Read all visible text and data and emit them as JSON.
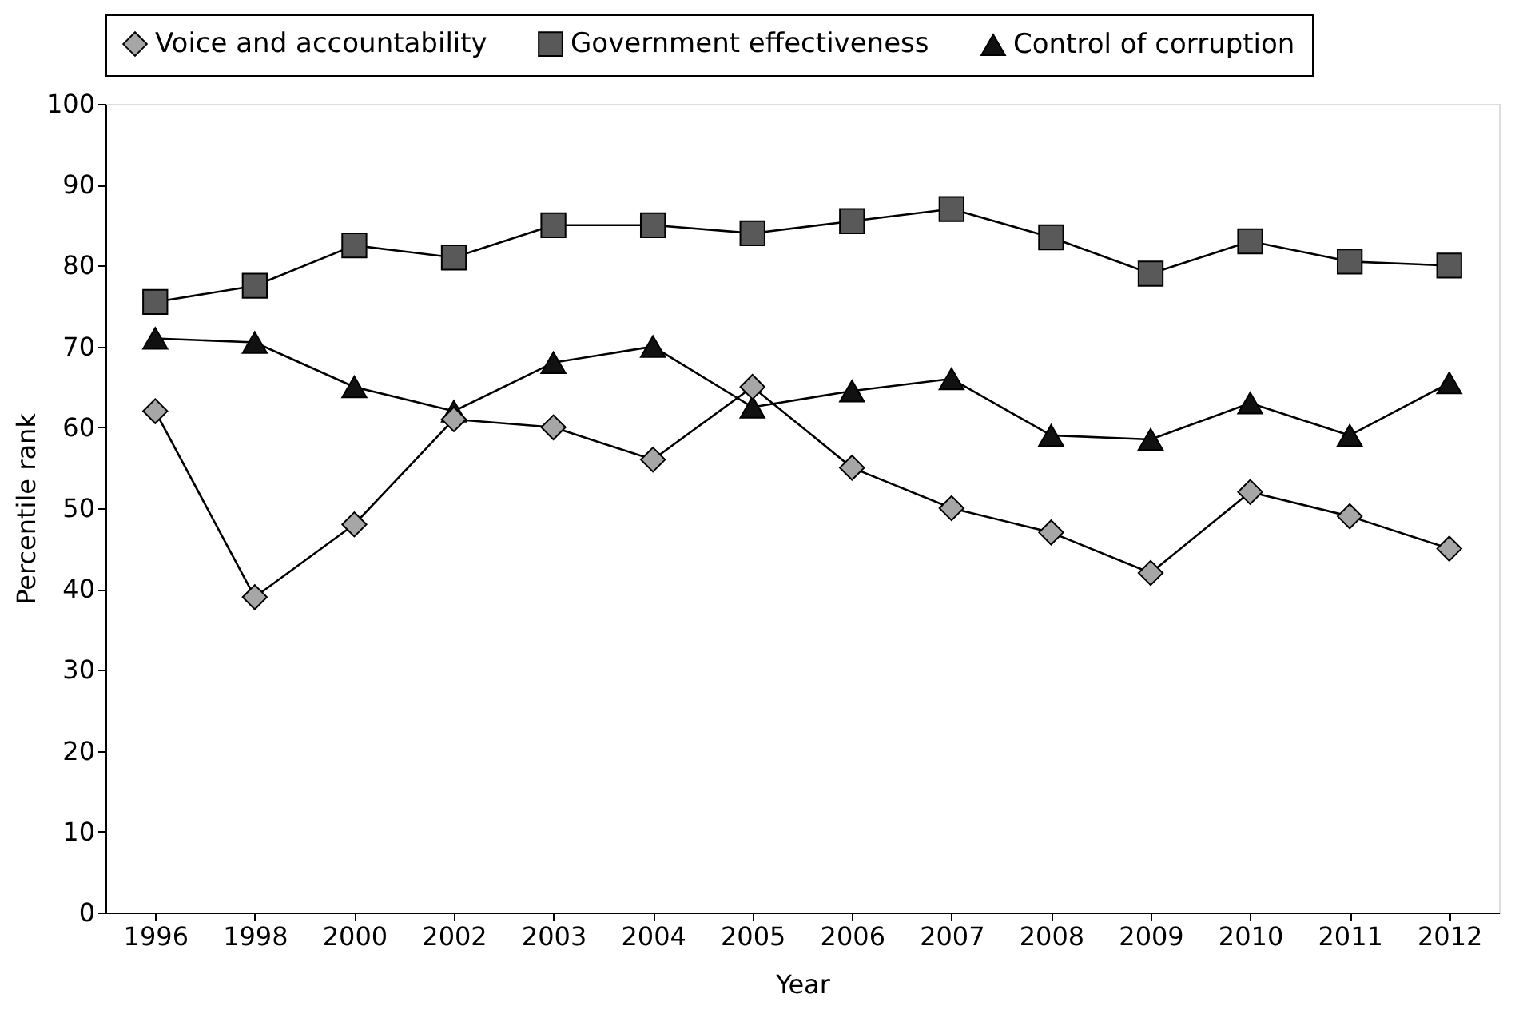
{
  "chart_data": {
    "type": "line",
    "xlabel": "Year",
    "ylabel": "Percentile rank",
    "categories": [
      "1996",
      "1998",
      "2000",
      "2002",
      "2003",
      "2004",
      "2005",
      "2006",
      "2007",
      "2008",
      "2009",
      "2010",
      "2011",
      "2012"
    ],
    "series": [
      {
        "name": "Voice and accountability",
        "color": "#a6a6a6",
        "marker": "diamond",
        "values": [
          62,
          39,
          48,
          61,
          60,
          56,
          65,
          55,
          50,
          47,
          42,
          52,
          49,
          45
        ]
      },
      {
        "name": "Government effectiveness",
        "color": "#595959",
        "marker": "square",
        "values": [
          75.5,
          77.5,
          82.5,
          81,
          85,
          85,
          84,
          85.5,
          87,
          83.5,
          79,
          83,
          80.5,
          80
        ]
      },
      {
        "name": "Control of corruption",
        "color": "#111111",
        "marker": "triangle",
        "values": [
          71,
          70.5,
          65,
          62,
          68,
          70,
          62.5,
          64.5,
          66,
          59,
          58.5,
          63,
          59,
          65.5
        ]
      }
    ],
    "ylim": [
      0,
      100
    ],
    "yticks": [
      0,
      10,
      20,
      30,
      40,
      50,
      60,
      70,
      80,
      90,
      100
    ],
    "grid": false,
    "legend": "top",
    "line_style": "solid"
  }
}
